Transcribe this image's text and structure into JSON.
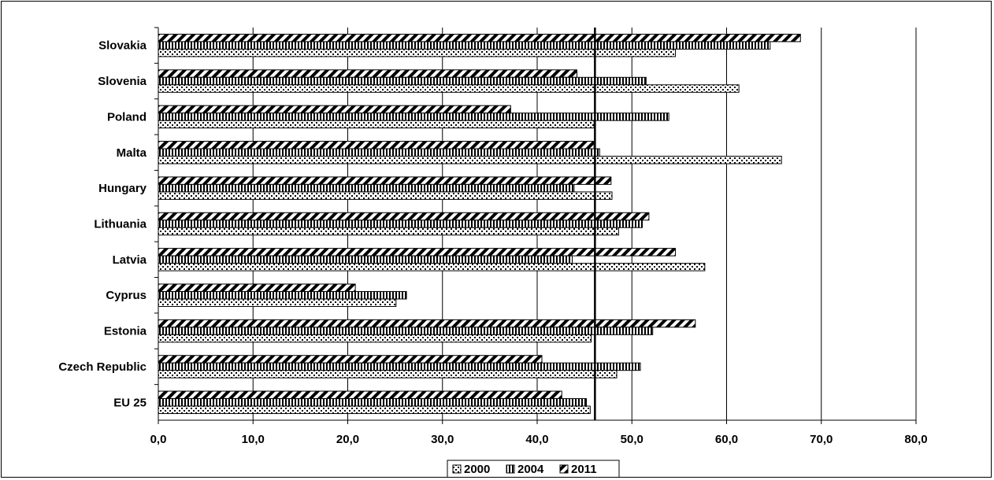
{
  "chart_data": {
    "type": "bar",
    "orientation": "horizontal",
    "title": "",
    "xlabel": "",
    "ylabel": "",
    "xlim": [
      0,
      80
    ],
    "x_ticks": [
      0,
      10,
      20,
      30,
      40,
      50,
      60,
      70,
      80
    ],
    "x_tick_labels": [
      "0,0",
      "10,0",
      "20,0",
      "30,0",
      "40,0",
      "50,0",
      "60,0",
      "70,0",
      "80,0"
    ],
    "grid": "vertical",
    "legend_position": "bottom",
    "categories": [
      "Slovakia",
      "Slovenia",
      "Poland",
      "Malta",
      "Hungary",
      "Lithuania",
      "Latvia",
      "Cyprus",
      "Estonia",
      "Czech Republic",
      "EU 25"
    ],
    "series": [
      {
        "name": "2000",
        "pattern": "dots",
        "values": [
          54.6,
          61.3,
          46.0,
          65.8,
          47.9,
          48.6,
          57.7,
          25.1,
          45.7,
          48.4,
          45.6
        ]
      },
      {
        "name": "2004",
        "pattern": "vertical-stripes",
        "values": [
          64.6,
          51.5,
          53.9,
          46.6,
          43.9,
          51.1,
          43.7,
          26.2,
          52.2,
          50.9,
          45.2
        ]
      },
      {
        "name": "2011",
        "pattern": "diagonal-stripes",
        "values": [
          67.8,
          44.2,
          37.2,
          46.0,
          47.8,
          51.8,
          54.6,
          20.8,
          56.7,
          40.5,
          42.6
        ]
      }
    ],
    "reference_line": {
      "value": 46.1
    },
    "colors": {
      "bar_fill": "#000000",
      "bar_background": "#ffffff",
      "axis": "#000000",
      "grid": "#000000"
    }
  }
}
